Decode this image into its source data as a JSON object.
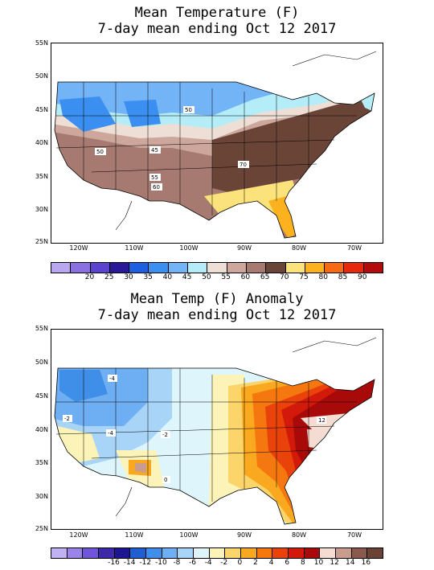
{
  "map1": {
    "title_line1": "Mean Temperature (F)",
    "title_line2": "7-day mean ending Oct 12 2017",
    "lat_labels": [
      "55N",
      "50N",
      "45N",
      "40N",
      "35N",
      "30N",
      "25N"
    ],
    "lon_labels": [
      "120W",
      "110W",
      "100W",
      "90W",
      "80W",
      "70W"
    ],
    "contour_labels": [
      "50",
      "50",
      "45",
      "55",
      "60",
      "70"
    ],
    "colorbar": {
      "colors": [
        "#b9a8f0",
        "#8a70e0",
        "#5b43cf",
        "#2a1a9a",
        "#1c5fe0",
        "#3b8ff0",
        "#72b4f5",
        "#b4ecf8",
        "#eedfd6",
        "#cda79b",
        "#a67a70",
        "#6b4438",
        "#fbe27a",
        "#fbb21e",
        "#f86914",
        "#e8280a",
        "#b30a0a"
      ],
      "labels": [
        "20",
        "25",
        "30",
        "35",
        "40",
        "45",
        "50",
        "55",
        "60",
        "65",
        "70",
        "75",
        "80",
        "85",
        "90"
      ]
    }
  },
  "map2": {
    "title_line1": "Mean Temp (F) Anomaly",
    "title_line2": "7-day mean ending Oct 12 2017",
    "lat_labels": [
      "55N",
      "50N",
      "45N",
      "40N",
      "35N",
      "30N",
      "25N"
    ],
    "lon_labels": [
      "120W",
      "110W",
      "100W",
      "90W",
      "80W",
      "70W"
    ],
    "contour_labels": [
      "-4",
      "-2",
      "-4",
      "-2",
      "0",
      "12"
    ],
    "colorbar": {
      "colors": [
        "#c0b2f5",
        "#9b83ea",
        "#6f56d8",
        "#3e2aa8",
        "#1d1690",
        "#1f5fd2",
        "#3f8ee8",
        "#6eaef2",
        "#a8d4f8",
        "#ddf5fb",
        "#fbf3b8",
        "#fbd56a",
        "#f9a81f",
        "#f4780f",
        "#e9420a",
        "#d31a0a",
        "#a80a0a",
        "#f4dcd2",
        "#c99c8e",
        "#8c5a4c",
        "#6a4236"
      ],
      "labels": [
        "-16",
        "-14",
        "-12",
        "-10",
        "-8",
        "-6",
        "-4",
        "-2",
        "0",
        "2",
        "4",
        "6",
        "8",
        "10",
        "12",
        "14",
        "16"
      ]
    }
  }
}
